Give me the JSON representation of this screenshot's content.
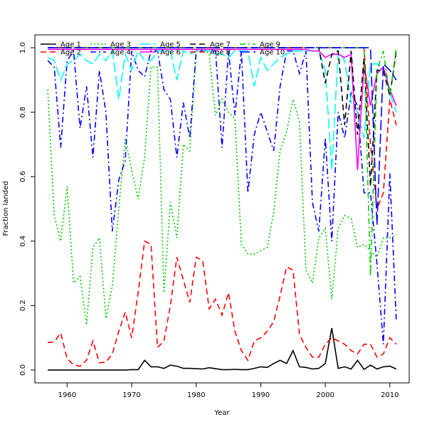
{
  "chart_data": {
    "type": "line",
    "title": "",
    "xlabel": "Year",
    "ylabel": "Fraction landed",
    "xlim": [
      1955,
      2013
    ],
    "ylim": [
      -0.04,
      1.04
    ],
    "xticks": [
      1960,
      1970,
      1980,
      1990,
      2000,
      2010
    ],
    "yticks": [
      0.0,
      0.2,
      0.4,
      0.6,
      0.8,
      1.0
    ],
    "ytick_labels": [
      "0.0",
      "0.2",
      "0.4",
      "0.6",
      "0.8",
      "1.0"
    ],
    "legend_position": "top",
    "x": [
      1957,
      1958,
      1959,
      1960,
      1961,
      1962,
      1963,
      1964,
      1965,
      1966,
      1967,
      1968,
      1969,
      1970,
      1971,
      1972,
      1973,
      1974,
      1975,
      1976,
      1977,
      1978,
      1979,
      1980,
      1981,
      1982,
      1983,
      1984,
      1985,
      1986,
      1987,
      1988,
      1989,
      1990,
      1991,
      1992,
      1993,
      1994,
      1995,
      1996,
      1997,
      1998,
      1999,
      2000,
      2001,
      2002,
      2003,
      2004,
      2005,
      2006,
      2007,
      2008,
      2009,
      2010,
      2011
    ],
    "series": [
      {
        "name": "Age 1",
        "color": "#000000",
        "dash": "solid",
        "values": [
          0,
          0,
          0,
          0,
          0,
          0,
          0,
          0,
          0,
          0,
          0,
          0,
          0,
          0.001,
          0.001,
          0.03,
          0.01,
          0.01,
          0.005,
          0.015,
          0.012,
          0.005,
          0.005,
          0.004,
          0.003,
          0.007,
          0.004,
          0.001,
          0.001,
          0.002,
          0.001,
          0.001,
          0.005,
          0.01,
          0.008,
          0.02,
          0.03,
          0.02,
          0.06,
          0.01,
          0.008,
          0.003,
          0.005,
          0.02,
          0.13,
          0.005,
          0.01,
          0.003,
          0.03,
          0.002,
          0.015,
          0.003,
          0.01,
          0.012,
          0.003
        ]
      },
      {
        "name": "Age 2",
        "color": "#ff0000",
        "dash": "8,5",
        "values": [
          0.085,
          0.087,
          0.115,
          0.035,
          0.016,
          0.012,
          0.03,
          0.09,
          0.022,
          0.025,
          0.05,
          0.12,
          0.18,
          0.1,
          0.24,
          0.4,
          0.39,
          0.07,
          0.09,
          0.2,
          0.35,
          0.28,
          0.21,
          0.35,
          0.34,
          0.19,
          0.22,
          0.17,
          0.24,
          0.12,
          0.06,
          0.03,
          0.09,
          0.1,
          0.12,
          0.15,
          0.23,
          0.32,
          0.31,
          0.11,
          0.07,
          0.04,
          0.04,
          0.08,
          0.1,
          0.09,
          0.08,
          0.06,
          0.05,
          0.08,
          0.08,
          0.04,
          0.05,
          0.1,
          0.08
        ]
      },
      {
        "name": "Age 3",
        "color": "#00cc00",
        "dash": "2,3",
        "values": [
          0.87,
          0.48,
          0.4,
          0.57,
          0.27,
          0.29,
          0.14,
          0.38,
          0.41,
          0.16,
          0.26,
          0.5,
          0.72,
          0.62,
          0.53,
          0.66,
          0.94,
          0.94,
          0.24,
          0.52,
          0.41,
          0.7,
          0.68,
          0.99,
          1.0,
          0.98,
          0.79,
          0.84,
          0.8,
          0.78,
          0.39,
          0.36,
          0.36,
          0.37,
          0.38,
          0.49,
          0.68,
          0.74,
          0.84,
          0.77,
          0.31,
          0.27,
          0.41,
          0.44,
          0.22,
          0.44,
          0.48,
          0.47,
          0.38,
          0.39,
          0.37,
          0.35,
          0.41,
          0.41,
          0.42
        ]
      },
      {
        "name": "Age 4",
        "color": "#0000ff",
        "dash": "8,4,2,4",
        "values": [
          0.96,
          0.94,
          0.69,
          0.96,
          0.99,
          0.75,
          0.88,
          0.66,
          0.93,
          0.8,
          0.43,
          0.59,
          0.65,
          0.99,
          0.93,
          0.91,
          0.99,
          0.99,
          0.87,
          0.84,
          0.66,
          0.83,
          0.72,
          0.99,
          0.99,
          0.99,
          0.99,
          0.69,
          0.99,
          0.79,
          0.99,
          0.55,
          0.73,
          0.8,
          0.74,
          0.68,
          0.88,
          0.99,
          0.99,
          0.92,
          0.99,
          0.52,
          0.43,
          0.72,
          0.4,
          0.8,
          0.72,
          0.86,
          0.82,
          0.55,
          0.55,
          0.33,
          0.08,
          0.61,
          0.15
        ]
      },
      {
        "name": "Age 5",
        "color": "#00ffff",
        "dash": "14,5",
        "values": [
          0.97,
          0.96,
          0.9,
          0.95,
          0.96,
          0.98,
          0.96,
          0.95,
          0.98,
          0.96,
          0.99,
          0.84,
          0.98,
          0.93,
          0.99,
          0.96,
          0.96,
          0.99,
          0.99,
          0.99,
          0.9,
          0.99,
          0.98,
          0.99,
          0.99,
          0.99,
          0.98,
          0.98,
          0.97,
          0.99,
          0.99,
          0.99,
          0.88,
          0.97,
          0.93,
          0.95,
          0.97,
          0.98,
          0.99,
          0.99,
          0.99,
          0.99,
          0.99,
          0.93,
          0.62,
          0.99,
          0.96,
          0.83,
          0.8,
          0.72,
          0.95,
          0.95,
          0.94,
          0.86,
          0.8
        ]
      },
      {
        "name": "Age 6",
        "color": "#ff00ff",
        "dash": "solid",
        "values": [
          0.995,
          0.995,
          0.995,
          0.995,
          0.995,
          0.995,
          0.995,
          0.995,
          0.995,
          0.995,
          0.995,
          0.995,
          0.995,
          0.995,
          0.995,
          0.995,
          0.995,
          0.995,
          0.995,
          0.995,
          0.995,
          0.995,
          0.995,
          0.995,
          0.995,
          0.995,
          0.995,
          0.995,
          0.995,
          0.995,
          0.995,
          0.995,
          0.995,
          0.995,
          0.995,
          0.995,
          0.995,
          0.995,
          0.995,
          0.995,
          0.995,
          0.99,
          0.99,
          0.97,
          0.98,
          0.98,
          0.97,
          0.98,
          0.62,
          0.95,
          0.82,
          0.92,
          0.94,
          0.87,
          0.82
        ]
      },
      {
        "name": "Age 7",
        "color": "#000000",
        "dash": "8,5",
        "values": [
          1,
          1,
          1,
          1,
          1,
          1,
          1,
          1,
          1,
          1,
          1,
          1,
          1,
          1,
          1,
          1,
          1,
          1,
          1,
          1,
          1,
          1,
          1,
          1,
          1,
          1,
          1,
          1,
          1,
          1,
          1,
          1,
          1,
          1,
          1,
          1,
          1,
          1,
          1,
          1,
          1,
          1,
          1,
          0.89,
          0.98,
          0.99,
          0.76,
          0.99,
          0.73,
          0.97,
          0.57,
          0.93,
          0.93,
          0.85,
          0.99
        ]
      },
      {
        "name": "Age 8",
        "color": "#ff0000",
        "dash": "8,5",
        "values": [
          1,
          1,
          1,
          1,
          1,
          1,
          1,
          1,
          1,
          1,
          1,
          1,
          1,
          1,
          1,
          1,
          1,
          1,
          1,
          1,
          1,
          1,
          1,
          1,
          1,
          1,
          1,
          1,
          1,
          1,
          1,
          1,
          1,
          1,
          1,
          1,
          1,
          1,
          1,
          1,
          1,
          1,
          1,
          1,
          1,
          1,
          1,
          1,
          1,
          1,
          0.7,
          0.5,
          0.55,
          0.84,
          0.76
        ]
      },
      {
        "name": "Age 9",
        "color": "#00cc00",
        "dash": "8,4,2,4",
        "values": [
          1,
          1,
          1,
          1,
          1,
          1,
          1,
          1,
          1,
          1,
          1,
          1,
          1,
          1,
          1,
          1,
          1,
          1,
          1,
          1,
          1,
          1,
          1,
          1,
          1,
          1,
          1,
          1,
          1,
          1,
          1,
          1,
          1,
          1,
          1,
          1,
          1,
          1,
          1,
          1,
          1,
          1,
          1,
          1,
          1,
          1,
          1,
          1,
          1,
          1,
          0.29,
          0.93,
          0.99,
          0.85,
          1.0
        ]
      },
      {
        "name": "Age 10",
        "color": "#0000ff",
        "dash": "14,5",
        "values": [
          1,
          1,
          1,
          1,
          1,
          1,
          1,
          1,
          1,
          1,
          1,
          1,
          1,
          1,
          1,
          1,
          1,
          1,
          1,
          1,
          1,
          1,
          1,
          1,
          1,
          1,
          1,
          1,
          1,
          1,
          1,
          1,
          1,
          1,
          1,
          1,
          1,
          1,
          1,
          1,
          1,
          1,
          1,
          1,
          1,
          1,
          1,
          1,
          1,
          1,
          1,
          0.45,
          0.95,
          0.93,
          0.9
        ]
      }
    ]
  }
}
